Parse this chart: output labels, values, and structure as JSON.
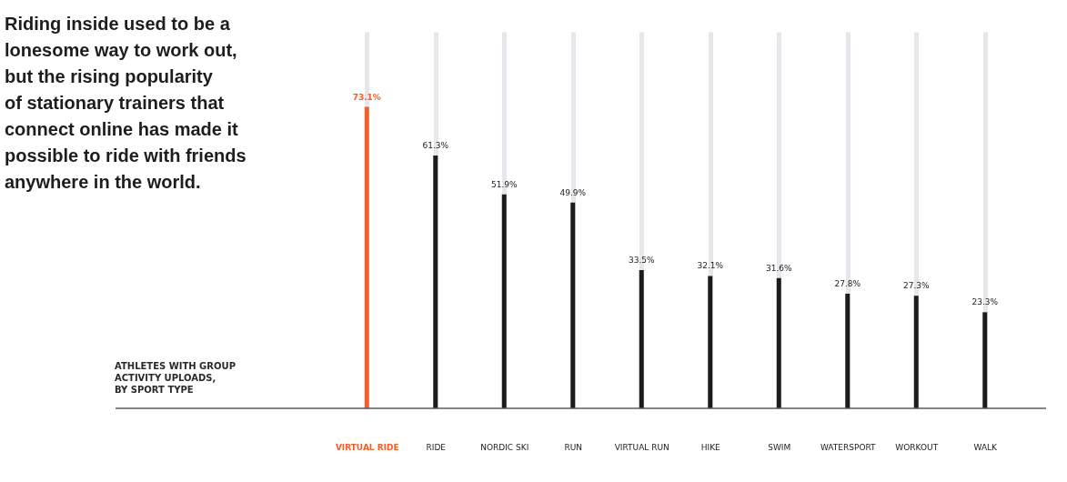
{
  "chart_data": {
    "type": "bar",
    "title": "Riding inside used to be a\nlonesome way to work out,\nbut the rising popularity\nof stationary trainers that\nconnect online has made it\npossible to ride with friends\nanywhere in the world.",
    "subtitle": "ATHLETES WITH GROUP\nACTIVITY UPLOADS,\nBY SPORT TYPE",
    "categories": [
      "VIRTUAL RIDE",
      "RIDE",
      "NORDIC SKI",
      "RUN",
      "VIRTUAL RUN",
      "HIKE",
      "SWIM",
      "WATERSPORT",
      "WORKOUT",
      "WALK"
    ],
    "values": [
      73.1,
      61.3,
      51.9,
      49.9,
      33.5,
      32.1,
      31.6,
      27.8,
      27.3,
      23.3
    ],
    "colors": [
      "#fc5c22",
      "#1c1c1c",
      "#1c1c1c",
      "#1c1c1c",
      "#1c1c1c",
      "#1c1c1c",
      "#1c1c1c",
      "#1c1c1c",
      "#1c1c1c",
      "#1c1c1c"
    ],
    "value_labels": [
      "73.1%",
      "61.3%",
      "51.9%",
      "49.9%",
      "33.5%",
      "32.1%",
      "31.6%",
      "27.8%",
      "27.3%",
      "23.3%"
    ],
    "grid": "x",
    "tick_labels": "x"
  }
}
